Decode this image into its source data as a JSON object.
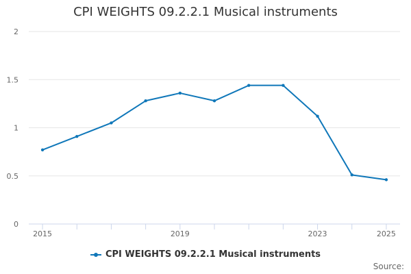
{
  "chart_data": {
    "type": "line",
    "title": "CPI WEIGHTS 09.2.2.1 Musical instruments",
    "xlabel": "",
    "ylabel": "",
    "x": [
      2015,
      2016,
      2017,
      2018,
      2019,
      2020,
      2021,
      2022,
      2023,
      2024,
      2025
    ],
    "x_tick_labels": [
      "2015",
      "2019",
      "2023",
      "2025"
    ],
    "x_tick_values": [
      2015,
      2019,
      2023,
      2025
    ],
    "y_tick_labels": [
      "0",
      "0.5",
      "1",
      "1.5",
      "2"
    ],
    "ylim": [
      0,
      2
    ],
    "xlim": [
      2014.6,
      2025.4
    ],
    "grid": true,
    "legend": "bottom",
    "series": [
      {
        "name": "CPI WEIGHTS 09.2.2.1 Musical instruments",
        "color": "#0f77b9",
        "values": [
          0.77,
          0.91,
          1.05,
          1.28,
          1.36,
          1.28,
          1.44,
          1.44,
          1.12,
          0.51,
          0.46
        ]
      }
    ]
  },
  "source_label": "Source:"
}
